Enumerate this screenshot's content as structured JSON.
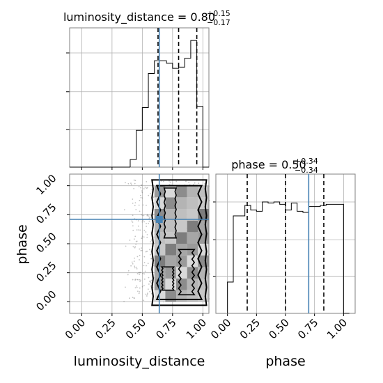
{
  "chart_data": [
    {
      "type": "histogram",
      "panel": "luminosity_distance marginal",
      "title_param": "luminosity_distance",
      "title_median": "0.80",
      "title_plus": "+0.15",
      "title_minus": "−0.17",
      "xlim": [
        -0.1,
        1.05
      ],
      "truth": 0.64,
      "quantiles": [
        0.63,
        0.8,
        0.95
      ],
      "bin_edges": [
        0.4,
        0.45,
        0.5,
        0.55,
        0.6,
        0.65,
        0.7,
        0.75,
        0.8,
        0.85,
        0.9,
        0.95,
        1.0,
        1.05
      ],
      "counts": [
        0.06,
        0.29,
        0.47,
        0.74,
        0.84,
        0.84,
        0.82,
        0.78,
        0.79,
        0.86,
        1.0,
        0.48,
        0.0
      ]
    },
    {
      "type": "histogram",
      "panel": "phase marginal",
      "title_param": "phase",
      "title_median": "0.50",
      "title_plus": "+0.34",
      "title_minus": "−0.34",
      "xlim": [
        -0.1,
        1.1
      ],
      "truth": 0.7,
      "quantiles": [
        0.17,
        0.5,
        0.83
      ],
      "bin_edges": [
        0.0,
        0.05,
        0.1,
        0.15,
        0.2,
        0.25,
        0.3,
        0.35,
        0.4,
        0.45,
        0.5,
        0.55,
        0.6,
        0.65,
        0.7,
        0.75,
        0.8,
        0.85,
        0.9,
        0.95,
        1.0,
        1.05
      ],
      "counts": [
        0.27,
        0.84,
        0.84,
        0.93,
        0.89,
        0.88,
        0.96,
        0.95,
        0.96,
        0.94,
        0.89,
        0.95,
        0.88,
        0.87,
        0.92,
        0.92,
        0.93,
        0.94,
        0.94,
        0.94,
        0.0
      ]
    },
    {
      "type": "2d-density",
      "panel": "phase vs luminosity_distance",
      "xlabel": "luminosity_distance",
      "ylabel": "phase",
      "xlim": [
        -0.1,
        1.05
      ],
      "ylim": [
        -0.1,
        1.1
      ],
      "truth": [
        0.64,
        0.71
      ]
    }
  ],
  "axes": {
    "x_ticks": [
      "0.00",
      "0.25",
      "0.50",
      "0.75",
      "1.00"
    ],
    "phase_ticks": [
      "0.00",
      "0.25",
      "0.50",
      "0.75",
      "1.00"
    ],
    "xlabel_left": "luminosity_distance",
    "xlabel_right": "phase",
    "ylabel_lower": "phase"
  },
  "colors": {
    "truth": "#4682b4",
    "hist": "#000000",
    "grid": "#b0b0b0",
    "frame": "#808080"
  }
}
